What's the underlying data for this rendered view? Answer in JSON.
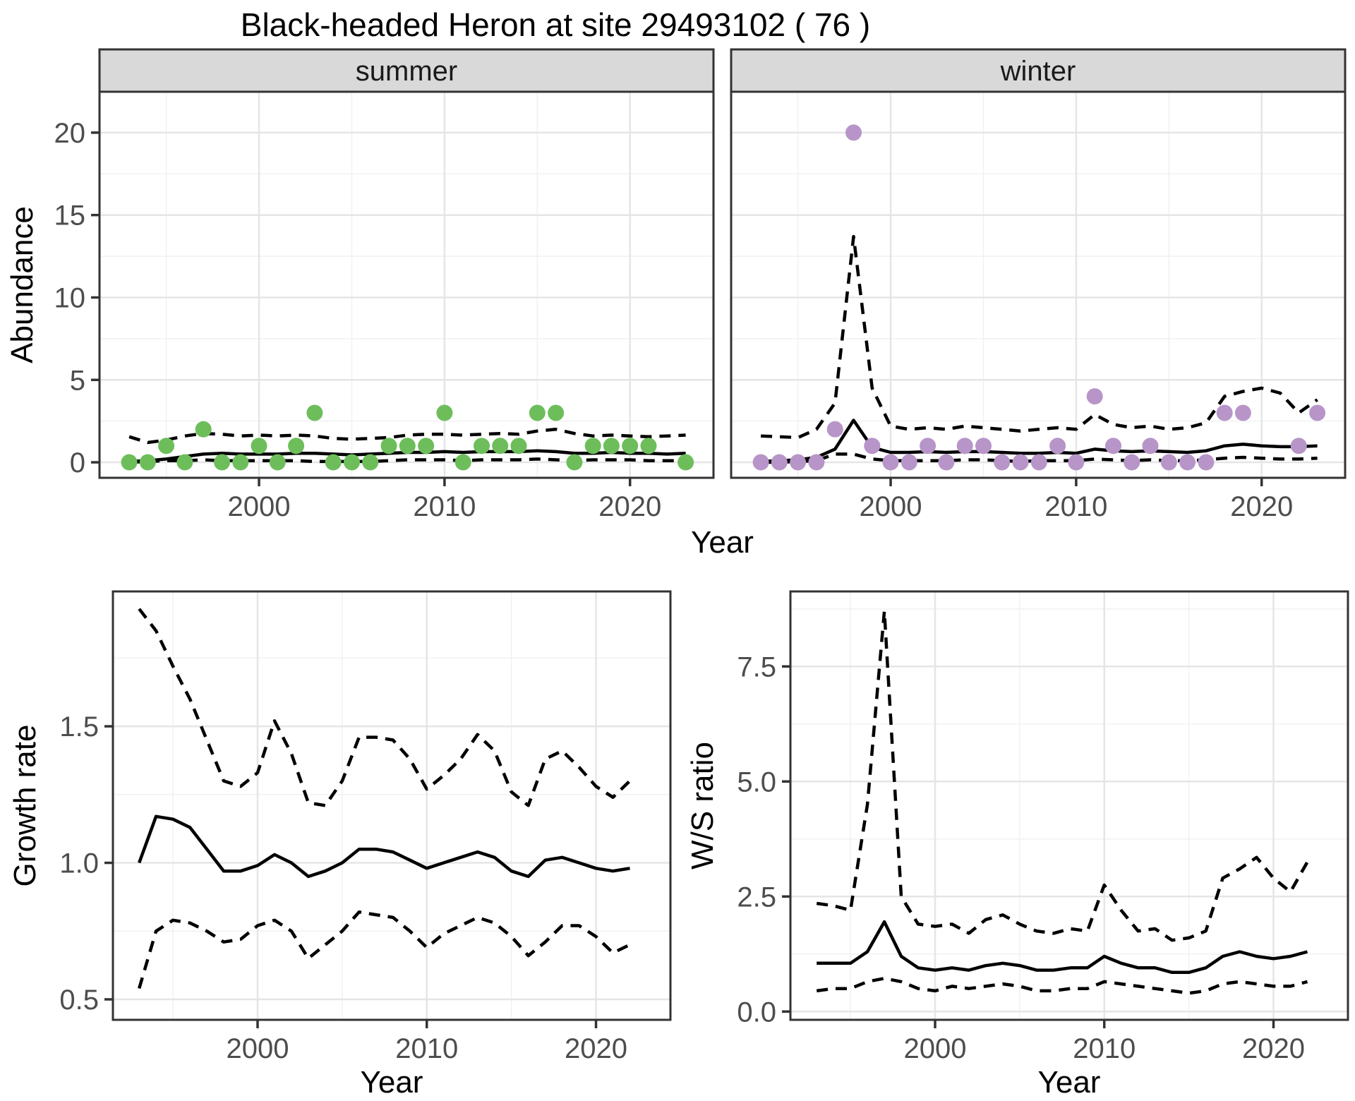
{
  "title": "Black-headed Heron at site 29493102 ( 76 )",
  "colors": {
    "summer_point": "#6DBE5B",
    "winter_point": "#B795C8",
    "line": "#000000",
    "panel_border": "#333333",
    "strip_bg": "#D9D9D9",
    "strip_text": "#1A1A1A",
    "grid_major": "#E5E5E5",
    "grid_minor": "#F1F1F1",
    "tick_label": "#4D4D4D",
    "axis_title": "#000000",
    "background": "#FFFFFF"
  },
  "chart_data": [
    {
      "id": "abundance",
      "type": "scatter",
      "xlabel": "Year",
      "ylabel": "Abundance",
      "xlim": [
        1991.4,
        2024.5
      ],
      "ylim": [
        -0.94,
        22.48
      ],
      "grid": true,
      "legend": "none",
      "xticks": {
        "values": [
          2000,
          2010,
          2020
        ],
        "labels": [
          "2000",
          "2010",
          "2020"
        ],
        "minor": [
          1995,
          2005,
          2015
        ]
      },
      "yticks": {
        "values": [
          0,
          5,
          10,
          15,
          20
        ],
        "labels": [
          "0",
          "5",
          "10",
          "15",
          "20"
        ],
        "minor": [
          2.5,
          7.5,
          12.5,
          17.5
        ]
      },
      "years": [
        1993,
        1994,
        1995,
        1996,
        1997,
        1998,
        1999,
        2000,
        2001,
        2002,
        2003,
        2004,
        2005,
        2006,
        2007,
        2008,
        2009,
        2010,
        2011,
        2012,
        2013,
        2014,
        2015,
        2016,
        2017,
        2018,
        2019,
        2020,
        2021,
        2022,
        2023
      ],
      "facets": [
        {
          "label": "summer",
          "point_color": "#6DBE5B",
          "obs": [
            0,
            0,
            1,
            0,
            2,
            0,
            0,
            1,
            0,
            1,
            3,
            0,
            0,
            0,
            1,
            1,
            1,
            3,
            0,
            1,
            1,
            1,
            3,
            3,
            0,
            1,
            1,
            1,
            1,
            null,
            0
          ],
          "fit": [
            0.05,
            0.1,
            0.2,
            0.35,
            0.5,
            0.55,
            0.5,
            0.5,
            0.5,
            0.55,
            0.55,
            0.5,
            0.45,
            0.5,
            0.55,
            0.6,
            0.6,
            0.65,
            0.6,
            0.65,
            0.65,
            0.65,
            0.7,
            0.65,
            0.55,
            0.55,
            0.6,
            0.55,
            0.55,
            0.5,
            0.55
          ],
          "upper": [
            1.55,
            1.2,
            1.35,
            1.6,
            1.75,
            1.7,
            1.6,
            1.65,
            1.6,
            1.65,
            1.6,
            1.45,
            1.4,
            1.45,
            1.5,
            1.65,
            1.7,
            1.7,
            1.65,
            1.7,
            1.75,
            1.7,
            1.9,
            2.0,
            1.75,
            1.6,
            1.65,
            1.6,
            1.55,
            1.6,
            1.65
          ],
          "lower": [
            0.0,
            0.05,
            0.1,
            0.1,
            0.15,
            0.1,
            0.1,
            0.1,
            0.1,
            0.1,
            0.05,
            0.05,
            0.05,
            0.05,
            0.1,
            0.15,
            0.15,
            0.15,
            0.1,
            0.15,
            0.15,
            0.15,
            0.2,
            0.15,
            0.1,
            0.15,
            0.15,
            0.15,
            0.1,
            0.1,
            0.1
          ]
        },
        {
          "label": "winter",
          "point_color": "#B795C8",
          "obs": [
            0,
            0,
            0,
            0,
            2,
            20,
            1,
            0,
            0,
            1,
            0,
            1,
            1,
            0,
            0,
            0,
            1,
            0,
            4,
            1,
            0,
            1,
            0,
            0,
            0,
            3,
            3,
            null,
            null,
            1,
            3
          ],
          "fit": [
            0.05,
            0.1,
            0.15,
            0.3,
            0.8,
            2.55,
            0.9,
            0.6,
            0.6,
            0.65,
            0.6,
            0.65,
            0.65,
            0.6,
            0.55,
            0.55,
            0.6,
            0.55,
            0.8,
            0.7,
            0.65,
            0.7,
            0.65,
            0.6,
            0.7,
            1.0,
            1.1,
            1.0,
            0.95,
            0.95,
            1.0
          ],
          "upper": [
            1.6,
            1.55,
            1.5,
            2.0,
            3.6,
            13.7,
            4.5,
            2.2,
            2.0,
            2.1,
            2.0,
            2.2,
            2.1,
            2.0,
            1.9,
            2.0,
            2.1,
            2.0,
            2.9,
            2.3,
            2.1,
            2.2,
            2.0,
            2.1,
            2.4,
            4.0,
            4.3,
            4.5,
            4.2,
            3.0,
            3.8
          ],
          "lower": [
            0.0,
            0.0,
            0.05,
            0.1,
            0.5,
            0.5,
            0.2,
            0.1,
            0.1,
            0.1,
            0.1,
            0.15,
            0.15,
            0.1,
            0.05,
            0.1,
            0.1,
            0.1,
            0.2,
            0.15,
            0.1,
            0.15,
            0.1,
            0.1,
            0.15,
            0.25,
            0.3,
            0.25,
            0.2,
            0.2,
            0.25
          ]
        }
      ]
    },
    {
      "id": "growth",
      "type": "line",
      "xlabel": "Year",
      "ylabel": "Growth rate",
      "xlim": [
        1991.45,
        2024.4
      ],
      "ylim": [
        0.425,
        1.994
      ],
      "grid": true,
      "legend": "none",
      "xticks": {
        "values": [
          2000,
          2010,
          2020
        ],
        "labels": [
          "2000",
          "2010",
          "2020"
        ],
        "minor": [
          1995,
          2005,
          2015
        ]
      },
      "yticks": {
        "values": [
          0.5,
          1.0,
          1.5
        ],
        "labels": [
          "0.5",
          "1.0",
          "1.5"
        ],
        "minor": [
          0.75,
          1.25,
          1.75
        ]
      },
      "years": [
        1993,
        1994,
        1995,
        1996,
        1997,
        1998,
        1999,
        2000,
        2001,
        2002,
        2003,
        2004,
        2005,
        2006,
        2007,
        2008,
        2009,
        2010,
        2011,
        2012,
        2013,
        2014,
        2015,
        2016,
        2017,
        2018,
        2019,
        2020,
        2021,
        2022
      ],
      "fit": [
        1.0,
        1.17,
        1.16,
        1.13,
        1.05,
        0.97,
        0.97,
        0.99,
        1.03,
        1.0,
        0.95,
        0.97,
        1.0,
        1.05,
        1.05,
        1.04,
        1.01,
        0.98,
        1.0,
        1.02,
        1.04,
        1.02,
        0.97,
        0.95,
        1.01,
        1.02,
        1.0,
        0.98,
        0.97,
        0.98
      ],
      "upper": [
        1.93,
        1.85,
        1.72,
        1.6,
        1.45,
        1.3,
        1.28,
        1.33,
        1.52,
        1.4,
        1.22,
        1.21,
        1.3,
        1.46,
        1.46,
        1.45,
        1.38,
        1.27,
        1.32,
        1.38,
        1.47,
        1.41,
        1.26,
        1.21,
        1.38,
        1.41,
        1.35,
        1.28,
        1.24,
        1.3
      ],
      "lower": [
        0.54,
        0.75,
        0.79,
        0.78,
        0.75,
        0.71,
        0.72,
        0.77,
        0.79,
        0.75,
        0.65,
        0.7,
        0.75,
        0.82,
        0.81,
        0.8,
        0.75,
        0.69,
        0.74,
        0.77,
        0.8,
        0.78,
        0.73,
        0.66,
        0.71,
        0.77,
        0.77,
        0.73,
        0.67,
        0.7
      ]
    },
    {
      "id": "ws",
      "type": "line",
      "xlabel": "Year",
      "ylabel": "W/S ratio",
      "xlim": [
        1991.45,
        2024.4
      ],
      "ylim": [
        -0.18,
        9.13
      ],
      "grid": true,
      "legend": "none",
      "xticks": {
        "values": [
          2000,
          2010,
          2020
        ],
        "labels": [
          "2000",
          "2010",
          "2020"
        ],
        "minor": [
          1995,
          2005,
          2015
        ]
      },
      "yticks": {
        "values": [
          0,
          2.5,
          5,
          7.5
        ],
        "labels": [
          "0.0",
          "2.5",
          "5.0",
          "7.5"
        ],
        "minor": [
          1.25,
          3.75,
          6.25,
          8.75
        ]
      },
      "years": [
        1993,
        1994,
        1995,
        1996,
        1997,
        1998,
        1999,
        2000,
        2001,
        2002,
        2003,
        2004,
        2005,
        2006,
        2007,
        2008,
        2009,
        2010,
        2011,
        2012,
        2013,
        2014,
        2015,
        2016,
        2017,
        2018,
        2019,
        2020,
        2021,
        2022
      ],
      "fit": [
        1.05,
        1.05,
        1.05,
        1.3,
        1.95,
        1.2,
        0.95,
        0.9,
        0.95,
        0.9,
        1.0,
        1.05,
        1.0,
        0.9,
        0.9,
        0.95,
        0.95,
        1.2,
        1.05,
        0.95,
        0.95,
        0.85,
        0.85,
        0.95,
        1.2,
        1.3,
        1.2,
        1.15,
        1.2,
        1.3
      ],
      "upper": [
        2.35,
        2.3,
        2.2,
        4.5,
        8.7,
        2.5,
        1.9,
        1.85,
        1.9,
        1.7,
        2.0,
        2.1,
        1.9,
        1.75,
        1.7,
        1.8,
        1.75,
        2.75,
        2.2,
        1.75,
        1.8,
        1.55,
        1.6,
        1.75,
        2.9,
        3.1,
        3.35,
        2.9,
        2.6,
        3.25
      ],
      "lower": [
        0.45,
        0.5,
        0.5,
        0.65,
        0.72,
        0.65,
        0.5,
        0.45,
        0.55,
        0.5,
        0.55,
        0.6,
        0.55,
        0.45,
        0.45,
        0.5,
        0.5,
        0.65,
        0.6,
        0.55,
        0.5,
        0.45,
        0.4,
        0.45,
        0.6,
        0.65,
        0.6,
        0.55,
        0.55,
        0.65
      ]
    }
  ]
}
